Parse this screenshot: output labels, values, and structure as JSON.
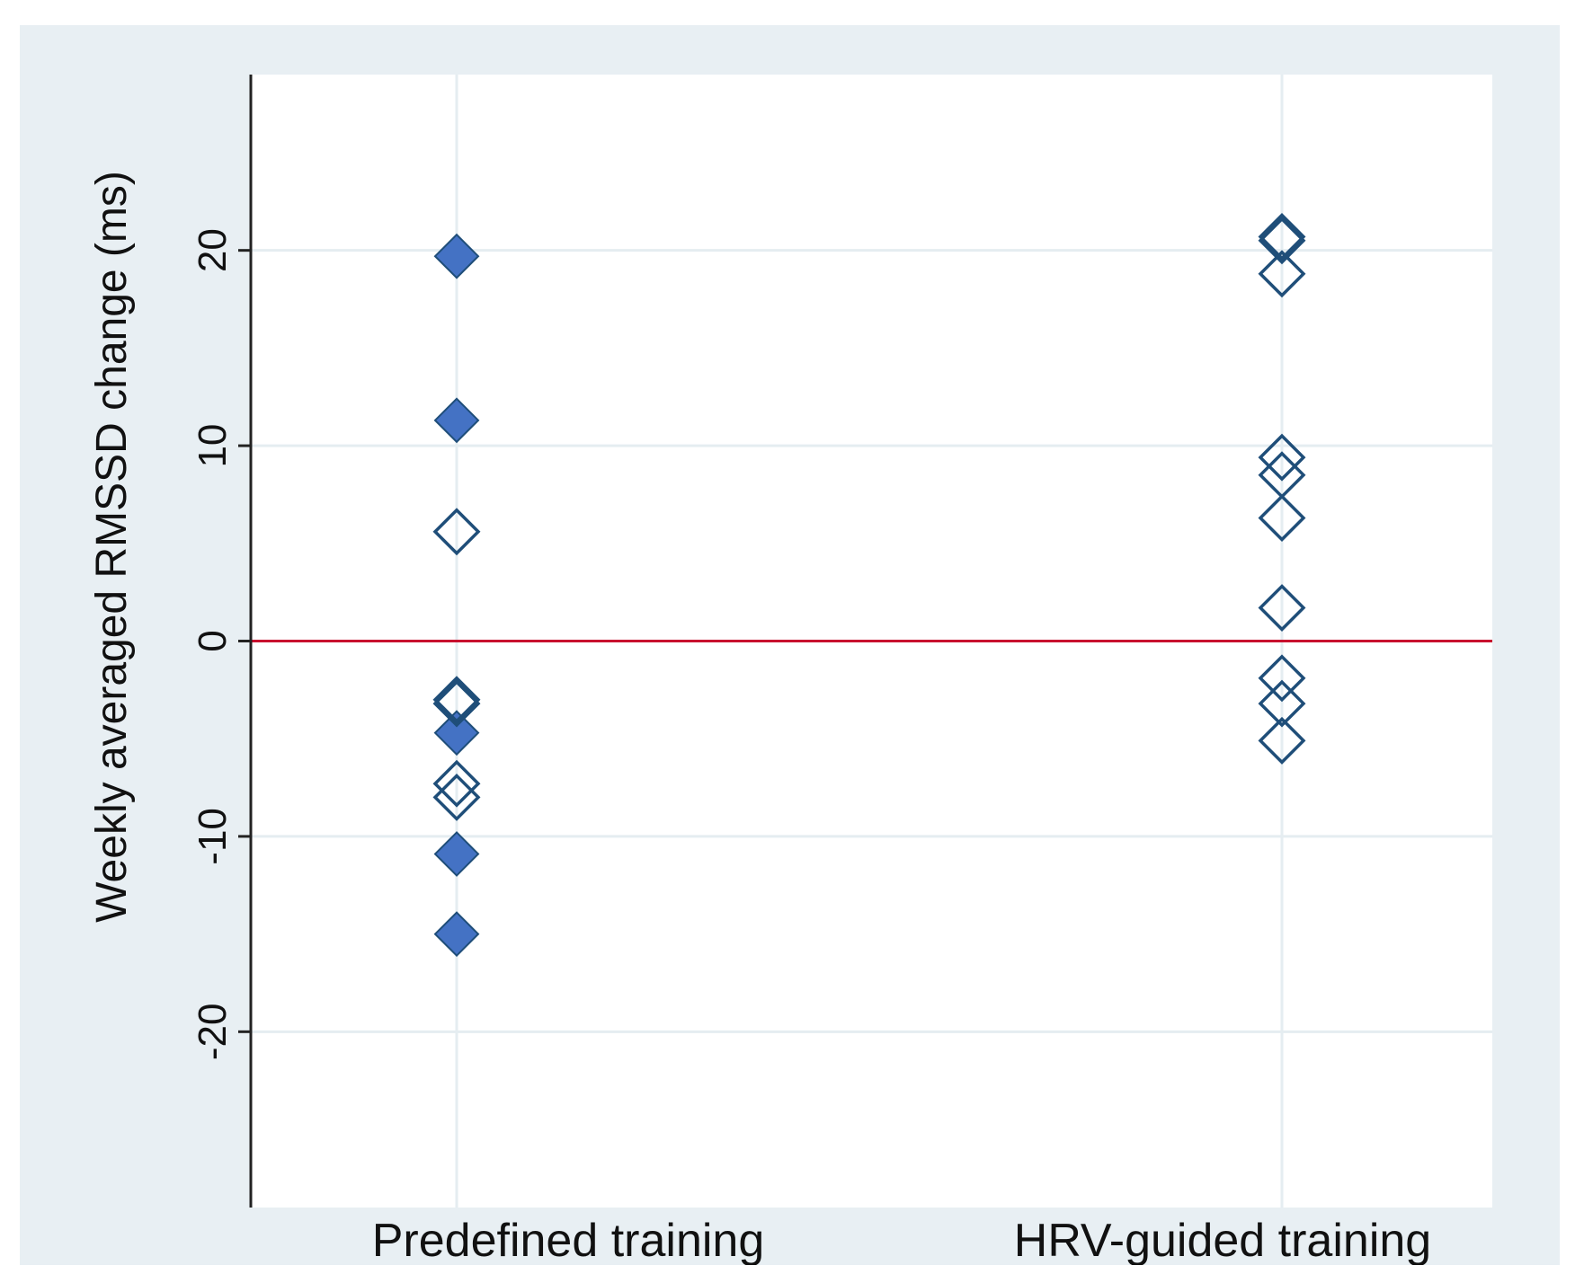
{
  "chart_data": {
    "type": "scatter",
    "title": "",
    "xlabel": "",
    "ylabel": "Weekly averaged RMSSD change (ms)",
    "ylim": [
      -29,
      29
    ],
    "yticks": [
      -20,
      -10,
      0,
      10,
      20
    ],
    "categories": [
      "Predefined training",
      "HRV-guided training"
    ],
    "reference_line": {
      "y": 0,
      "color": "#c8102e"
    },
    "grid": true,
    "colors": {
      "marker": "#1f4e79",
      "filled_marker": "#4472c4",
      "background": "#e8eff3",
      "plot_area": "#ffffff"
    },
    "series": [
      {
        "name": "Predefined training - filled",
        "category": "Predefined training",
        "marker": "filled-diamond",
        "values": [
          19.7,
          11.3,
          -4.7,
          -10.9,
          -15.0
        ]
      },
      {
        "name": "Predefined training - hollow",
        "category": "Predefined training",
        "marker": "hollow-diamond",
        "values": [
          5.6,
          -3.0,
          -3.2,
          -7.3,
          -8.0
        ]
      },
      {
        "name": "HRV-guided training - hollow",
        "category": "HRV-guided training",
        "marker": "hollow-diamond",
        "values": [
          20.7,
          20.5,
          18.8,
          9.4,
          8.5,
          6.3,
          1.7,
          -1.9,
          -3.2,
          -5.1
        ]
      }
    ]
  }
}
